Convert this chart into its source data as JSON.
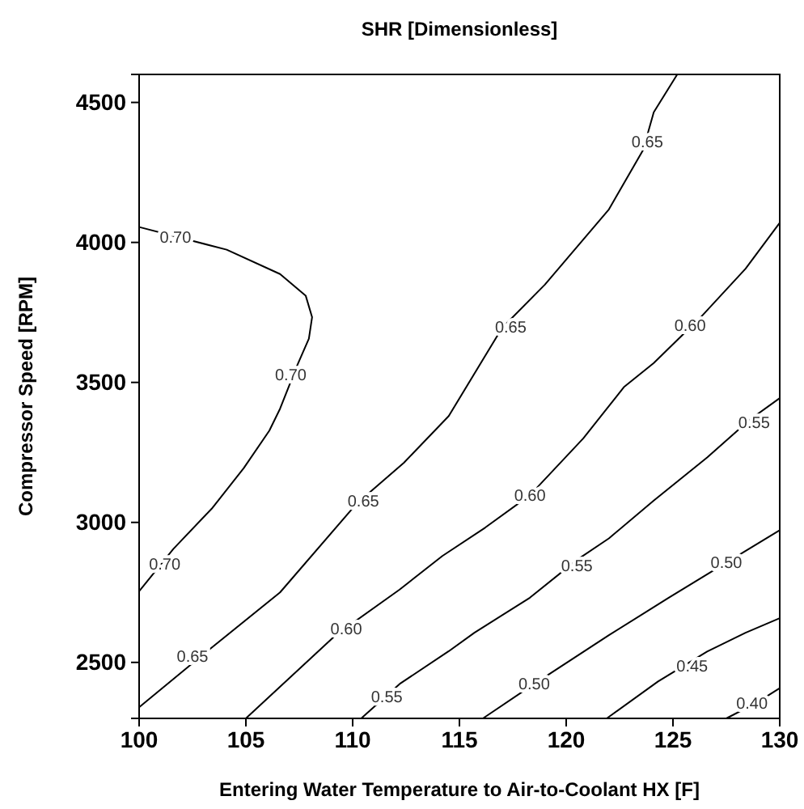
{
  "chart_data": {
    "type": "line",
    "title": "SHR [Dimensionless]",
    "xlabel": "Entering Water Temperature to Air-to-Coolant HX [F]",
    "ylabel": "Compressor Speed [RPM]",
    "xlim": [
      100,
      130
    ],
    "ylim": [
      2300,
      4600
    ],
    "xticks": [
      100,
      105,
      110,
      115,
      120,
      125,
      130
    ],
    "yticks": [
      2500,
      3000,
      3500,
      4000,
      4500
    ],
    "grid": false,
    "marker": "none",
    "line_style": "solid",
    "series": [
      {
        "color": "#000000",
        "x": [
          100,
          104.1,
          106.6,
          107.8,
          108.1,
          107.95,
          107.4,
          106.6,
          106.1,
          104.9,
          103.4,
          101.6,
          100
        ],
        "values": [
          4055,
          3974,
          3887,
          3810,
          3733,
          3656,
          3560,
          3406,
          3328,
          3194,
          3049,
          2905,
          2754
        ]
      },
      {
        "color": "#000000",
        "x": [
          100,
          102.85,
          106.6,
          110.2,
          112.4,
          114.5,
          117,
          119,
          122,
          123.6,
          124.1,
          125.2
        ],
        "values": [
          2340,
          2519,
          2750,
          3068,
          3213,
          3380,
          3695,
          3849,
          4118,
          4330,
          4465,
          4600
        ]
      },
      {
        "color": "#000000",
        "x": [
          105,
          109.2,
          112.2,
          114.2,
          116.2,
          118.3,
          120.8,
          122.7,
          124.1,
          126.3,
          128.4,
          130
        ],
        "values": [
          2300,
          2597,
          2760,
          2880,
          2981,
          3097,
          3300,
          3483,
          3569,
          3733,
          3906,
          4070
        ]
      },
      {
        "color": "#000000",
        "x": [
          110.4,
          112.2,
          114.5,
          115.7,
          118.3,
          120.5,
          122,
          124.1,
          126.6,
          128.6,
          130
        ],
        "values": [
          2300,
          2423,
          2540,
          2606,
          2731,
          2866,
          2943,
          3078,
          3232,
          3367,
          3444
        ]
      },
      {
        "color": "#000000",
        "x": [
          116.1,
          118.3,
          122,
          124.8,
          127.3,
          130
        ],
        "values": [
          2300,
          2413,
          2597,
          2731,
          2847,
          2972
        ]
      },
      {
        "color": "#000000",
        "x": [
          121.9,
          124.3,
          126.6,
          128.4,
          130
        ],
        "values": [
          2300,
          2432,
          2539,
          2606,
          2658
        ]
      },
      {
        "color": "#000000",
        "x": [
          127.5,
          128.9,
          130
        ],
        "values": [
          2300,
          2355,
          2408
        ]
      }
    ],
    "annotations": [
      {
        "text": "0.70",
        "x": 101.7,
        "y": 4018
      },
      {
        "text": "0.70",
        "x": 107.1,
        "y": 3529
      },
      {
        "text": "0.70",
        "x": 101.2,
        "y": 2851
      },
      {
        "text": "0.65",
        "x": 102.5,
        "y": 2523
      },
      {
        "text": "0.65",
        "x": 110.5,
        "y": 3078
      },
      {
        "text": "0.65",
        "x": 117.4,
        "y": 3698
      },
      {
        "text": "0.65",
        "x": 123.8,
        "y": 4359
      },
      {
        "text": "0.60",
        "x": 109.7,
        "y": 2620
      },
      {
        "text": "0.60",
        "x": 118.3,
        "y": 3097
      },
      {
        "text": "0.60",
        "x": 125.8,
        "y": 3704
      },
      {
        "text": "0.55",
        "x": 111.6,
        "y": 2377
      },
      {
        "text": "0.55",
        "x": 120.5,
        "y": 2845
      },
      {
        "text": "0.55",
        "x": 128.8,
        "y": 3357
      },
      {
        "text": "0.50",
        "x": 118.5,
        "y": 2423
      },
      {
        "text": "0.50",
        "x": 127.5,
        "y": 2857
      },
      {
        "text": "0.45",
        "x": 125.9,
        "y": 2487
      },
      {
        "text": "0.40",
        "x": 128.7,
        "y": 2355
      }
    ]
  }
}
